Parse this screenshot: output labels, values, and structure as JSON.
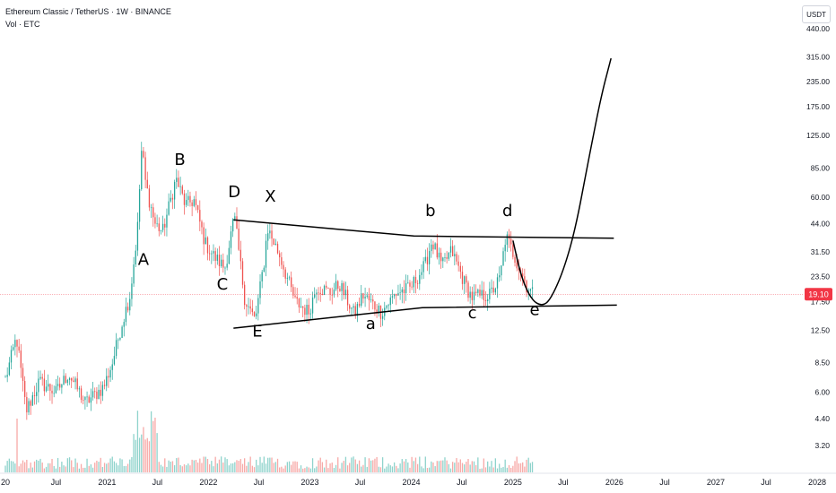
{
  "header": {
    "symbol": "Ethereum Classic / TetherUS · 1W · BINANCE",
    "volume": "Vol · ETC",
    "currency": "USDT"
  },
  "colors": {
    "up": "#26a69a",
    "down": "#ef5350",
    "upvol": "#8fd3cc",
    "downvol": "#f7a9a7",
    "last": "#f23645"
  },
  "chart_data": {
    "type": "line",
    "title": "",
    "y_scale": "log",
    "y_ticks": [
      3.2,
      4.4,
      6.0,
      8.5,
      12.5,
      17.5,
      23.5,
      31.5,
      44.0,
      60.0,
      85.0,
      125.0,
      175.0,
      235.0,
      315.0,
      440.0
    ],
    "y_tick_labels": [
      "3.20",
      "4.40",
      "6.00",
      "8.50",
      "12.50",
      "17.50",
      "23.50",
      "31.50",
      "44.00",
      "60.00",
      "85.00",
      "125.00",
      "175.00",
      "235.00",
      "315.00",
      "440.00"
    ],
    "x_tick_labels": [
      "20",
      "Jul",
      "2021",
      "Jul",
      "2022",
      "Jul",
      "2023",
      "Jul",
      "2024",
      "Jul",
      "2025",
      "Jul",
      "2026",
      "Jul",
      "2027",
      "Jul",
      "2028"
    ],
    "x_tick_dates": [
      "2020-01-01",
      "2020-07-01",
      "2021-01-01",
      "2021-07-01",
      "2022-01-01",
      "2022-07-01",
      "2023-01-01",
      "2023-07-01",
      "2024-01-01",
      "2024-07-01",
      "2025-01-01",
      "2025-07-01",
      "2026-01-01",
      "2026-07-01",
      "2027-01-01",
      "2027-07-01",
      "2028-01-01"
    ],
    "last_price": 19.1,
    "last_price_label": "19.10",
    "price_path": [
      [
        "2020-01-01",
        7.0
      ],
      [
        "2020-02-10",
        11.5
      ],
      [
        "2020-03-16",
        4.8
      ],
      [
        "2020-05-01",
        6.8
      ],
      [
        "2020-07-01",
        6.0
      ],
      [
        "2020-08-15",
        7.5
      ],
      [
        "2020-10-15",
        5.3
      ],
      [
        "2020-12-20",
        6.4
      ],
      [
        "2021-01-20",
        8.5
      ],
      [
        "2021-02-20",
        13.0
      ],
      [
        "2021-03-25",
        19.0
      ],
      [
        "2021-04-20",
        40.0
      ],
      [
        "2021-05-06",
        110.0
      ],
      [
        "2021-05-20",
        70.0
      ],
      [
        "2021-06-22",
        44.0
      ],
      [
        "2021-07-20",
        40.0
      ],
      [
        "2021-09-06",
        75.0
      ],
      [
        "2021-10-10",
        55.0
      ],
      [
        "2021-11-10",
        58.0
      ],
      [
        "2021-12-20",
        35.0
      ],
      [
        "2022-01-20",
        30.0
      ],
      [
        "2022-03-01",
        26.0
      ],
      [
        "2022-04-04",
        48.0
      ],
      [
        "2022-05-12",
        18.0
      ],
      [
        "2022-06-18",
        14.0
      ],
      [
        "2022-07-20",
        28.0
      ],
      [
        "2022-08-01",
        42.0
      ],
      [
        "2022-09-15",
        30.0
      ],
      [
        "2022-11-09",
        17.5
      ],
      [
        "2022-12-28",
        15.5
      ],
      [
        "2023-01-25",
        21.0
      ],
      [
        "2023-03-15",
        19.5
      ],
      [
        "2023-04-18",
        21.5
      ],
      [
        "2023-06-10",
        15.0
      ],
      [
        "2023-07-10",
        19.0
      ],
      [
        "2023-09-15",
        15.5
      ],
      [
        "2023-11-10",
        19.5
      ],
      [
        "2023-12-28",
        20.5
      ],
      [
        "2024-02-20",
        27.0
      ],
      [
        "2024-03-15",
        36.0
      ],
      [
        "2024-04-20",
        26.5
      ],
      [
        "2024-05-25",
        32.0
      ],
      [
        "2024-07-10",
        22.0
      ],
      [
        "2024-08-05",
        18.5
      ],
      [
        "2024-10-10",
        19.0
      ],
      [
        "2024-11-15",
        23.0
      ],
      [
        "2024-12-06",
        38.0
      ],
      [
        "2025-01-20",
        27.0
      ],
      [
        "2025-02-20",
        21.0
      ],
      [
        "2025-03-15",
        19.1
      ]
    ],
    "trendlines": [
      {
        "name": "upper-triangle-line",
        "points": [
          [
            "2022-04-01",
            46.0
          ],
          [
            "2024-01-10",
            38.0
          ],
          [
            "2025-12-30",
            37.0
          ]
        ]
      },
      {
        "name": "lower-triangle-line",
        "points": [
          [
            "2022-04-01",
            12.8
          ],
          [
            "2024-02-10",
            16.3
          ],
          [
            "2026-01-10",
            16.8
          ]
        ]
      }
    ],
    "projection_path": [
      [
        "2025-01-01",
        36.0
      ],
      [
        "2025-02-01",
        23.0
      ],
      [
        "2025-03-10",
        17.8
      ],
      [
        "2025-04-15",
        16.6
      ],
      [
        "2025-05-15",
        17.8
      ],
      [
        "2025-07-01",
        25.0
      ],
      [
        "2025-08-15",
        42.0
      ],
      [
        "2025-10-01",
        95.0
      ],
      [
        "2025-11-15",
        200.0
      ],
      [
        "2025-12-20",
        310.0
      ]
    ],
    "wave_labels": [
      {
        "text": "A",
        "date": "2021-05-12",
        "price": 27.0
      },
      {
        "text": "B",
        "date": "2021-09-20",
        "price": 88.0
      },
      {
        "text": "C",
        "date": "2022-02-20",
        "price": 20.2
      },
      {
        "text": "D",
        "date": "2022-04-04",
        "price": 60.0
      },
      {
        "text": "E",
        "date": "2022-06-26",
        "price": 11.6
      },
      {
        "text": "X",
        "date": "2022-08-12",
        "price": 57.0
      },
      {
        "text": "a",
        "date": "2023-08-08",
        "price": 12.7
      },
      {
        "text": "b",
        "date": "2024-03-10",
        "price": 48.0
      },
      {
        "text": "c",
        "date": "2024-08-08",
        "price": 14.4
      },
      {
        "text": "d",
        "date": "2024-12-12",
        "price": 48.0
      },
      {
        "text": "e",
        "date": "2025-03-20",
        "price": 14.9
      }
    ]
  }
}
